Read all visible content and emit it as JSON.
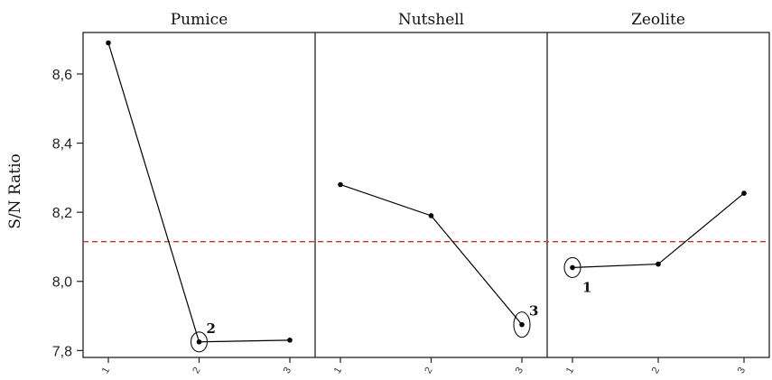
{
  "chart_data": {
    "type": "line",
    "ylabel": "S/N Ratio",
    "ylim": [
      7.78,
      8.72
    ],
    "y_ticks": [
      "7,8",
      "8,0",
      "8,2",
      "8,4",
      "8,6"
    ],
    "y_tick_values": [
      7.8,
      8.0,
      8.2,
      8.4,
      8.6
    ],
    "reference_line": {
      "value": 8.115,
      "color": "#c0392b",
      "style": "dashed"
    },
    "series_color": "#000000",
    "panels": [
      {
        "title": "Pumice",
        "categories": [
          "1",
          "2",
          "3"
        ],
        "values": [
          8.69,
          7.825,
          7.83
        ],
        "highlight_index": 1,
        "highlight_label": "2"
      },
      {
        "title": "Nutshell",
        "categories": [
          "1",
          "2",
          "3"
        ],
        "values": [
          8.28,
          8.19,
          7.875
        ],
        "highlight_index": 2,
        "highlight_label": "3"
      },
      {
        "title": "Zeolite",
        "categories": [
          "1",
          "2",
          "3"
        ],
        "values": [
          8.04,
          8.05,
          8.255
        ],
        "highlight_index": 0,
        "highlight_label": "1"
      }
    ]
  }
}
